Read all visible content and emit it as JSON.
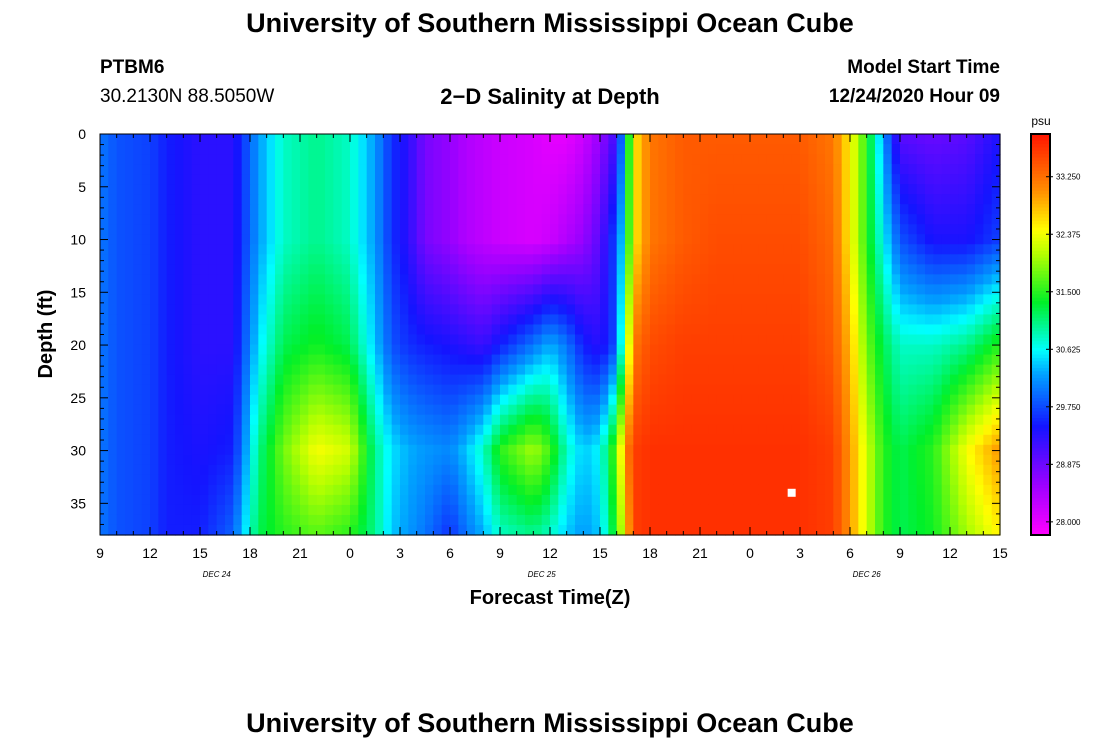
{
  "header": {
    "title_top": "University of Southern Mississippi Ocean Cube",
    "title_bottom": "University of Southern Mississippi Ocean Cube",
    "station_id": "PTBM6",
    "station_coords": "30.2130N 88.5050W",
    "plot_title": "2−D Salinity at Depth",
    "model_start_label": "Model Start Time",
    "model_start_value": "12/24/2020 Hour 09"
  },
  "chart_data": {
    "type": "heatmap",
    "title": "2−D Salinity at Depth",
    "xlabel": "Forecast Time(Z)",
    "ylabel": "Depth (ft)",
    "colorbar_unit": "psu",
    "xlim": [
      0,
      54
    ],
    "ylim": [
      0,
      38
    ],
    "x_tick_labels": [
      "9",
      "12",
      "15",
      "18",
      "21",
      "0",
      "3",
      "6",
      "9",
      "12",
      "15",
      "18",
      "21",
      "0",
      "3",
      "6",
      "9",
      "12",
      "15"
    ],
    "x_tick_hours": [
      0,
      3,
      6,
      9,
      12,
      15,
      18,
      21,
      24,
      27,
      30,
      33,
      36,
      39,
      42,
      45,
      48,
      51,
      54
    ],
    "date_labels": [
      {
        "hour": 7,
        "text": "DEC  24"
      },
      {
        "hour": 26.5,
        "text": "DEC  25"
      },
      {
        "hour": 46,
        "text": "DEC  26"
      }
    ],
    "y_tick_values": [
      0,
      5,
      10,
      15,
      20,
      25,
      30,
      35
    ],
    "colorbar_ticks": [
      28.0,
      28.875,
      29.75,
      30.625,
      31.5,
      32.375,
      33.25
    ],
    "colorbar_tick_labels": [
      "28.000",
      "28.875",
      "29.750",
      "30.625",
      "31.500",
      "32.375",
      "33.250"
    ],
    "value_range": [
      27.8,
      33.9
    ],
    "marker": {
      "hour": 41.5,
      "depth": 34
    },
    "field_hours": [
      0,
      1,
      3,
      4,
      6,
      8,
      9.5,
      11,
      13,
      15,
      16.5,
      17.5,
      18.5,
      19.5,
      21,
      22,
      23,
      24,
      26,
      27,
      28,
      29,
      30,
      31,
      31.5,
      32,
      33,
      35,
      37,
      40,
      42,
      44,
      45,
      46,
      47,
      48,
      50,
      52,
      54
    ],
    "field_depths": [
      0,
      10,
      20,
      30,
      38
    ],
    "field_values": [
      [
        30.0,
        29.8,
        29.7,
        29.5,
        29.3,
        29.3,
        30.2,
        30.8,
        31.0,
        30.8,
        30.2,
        29.6,
        29.3,
        28.8,
        28.6,
        28.4,
        28.3,
        28.2,
        28.1,
        28.0,
        28.0,
        28.2,
        28.6,
        29.2,
        30.5,
        32.5,
        33.2,
        33.4,
        33.4,
        33.4,
        33.4,
        33.2,
        32.5,
        31.5,
        30.2,
        29.0,
        28.9,
        29.0,
        29.4
      ],
      [
        30.0,
        29.8,
        29.7,
        29.5,
        29.3,
        29.3,
        30.2,
        30.8,
        31.0,
        30.8,
        30.2,
        29.6,
        29.3,
        28.8,
        28.6,
        28.4,
        28.3,
        28.2,
        28.1,
        28.2,
        28.4,
        28.6,
        29.0,
        29.8,
        30.8,
        32.5,
        33.2,
        33.4,
        33.5,
        33.5,
        33.5,
        33.3,
        32.5,
        31.5,
        30.6,
        29.8,
        29.4,
        29.4,
        29.7
      ],
      [
        30.0,
        29.8,
        29.7,
        29.5,
        29.3,
        29.3,
        30.5,
        31.2,
        31.4,
        31.2,
        30.4,
        29.8,
        29.6,
        29.5,
        29.4,
        29.3,
        29.2,
        29.5,
        30.0,
        30.3,
        30.0,
        29.5,
        29.3,
        29.8,
        31.5,
        33.2,
        33.5,
        33.6,
        33.6,
        33.6,
        33.6,
        33.4,
        32.8,
        31.8,
        31.2,
        30.8,
        30.8,
        31.0,
        31.5
      ],
      [
        30.0,
        29.8,
        29.7,
        29.5,
        29.4,
        29.5,
        31.0,
        31.8,
        32.4,
        32.2,
        31.0,
        30.5,
        30.3,
        30.2,
        30.1,
        30.4,
        30.8,
        31.5,
        32.0,
        31.6,
        30.8,
        30.4,
        30.6,
        31.8,
        33.0,
        33.6,
        33.7,
        33.7,
        33.7,
        33.7,
        33.7,
        33.6,
        33.0,
        32.2,
        31.5,
        31.2,
        31.5,
        32.4,
        33.0
      ],
      [
        30.0,
        29.8,
        29.7,
        29.5,
        29.5,
        29.9,
        31.2,
        31.5,
        31.7,
        31.5,
        31.0,
        30.4,
        30.2,
        30.0,
        29.6,
        30.0,
        30.3,
        30.8,
        31.0,
        30.8,
        30.4,
        30.2,
        30.4,
        31.5,
        32.5,
        33.6,
        33.7,
        33.7,
        33.7,
        33.7,
        33.7,
        33.6,
        33.0,
        32.2,
        31.5,
        31.2,
        31.4,
        32.0,
        32.5
      ]
    ]
  }
}
